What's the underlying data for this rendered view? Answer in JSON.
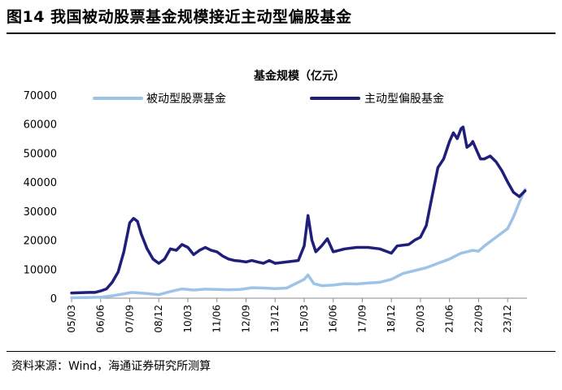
{
  "figure": {
    "title": "图14 我国被动股票基金规模接近主动型偏股基金",
    "source": "资料来源：Wind，海通证券研究所测算"
  },
  "chart_data": {
    "type": "line",
    "title": "基金规模（亿元）",
    "xlabel": "",
    "ylabel": "",
    "ylim": [
      0,
      70000
    ],
    "yticks": [
      0,
      10000,
      20000,
      30000,
      40000,
      50000,
      60000,
      70000
    ],
    "xlim": [
      2005.167,
      2024.75
    ],
    "xticks": [
      "05/03",
      "06/06",
      "07/09",
      "08/12",
      "10/03",
      "11/06",
      "12/09",
      "13/12",
      "15/03",
      "16/06",
      "17/09",
      "18/12",
      "20/03",
      "21/06",
      "22/09",
      "23/12"
    ],
    "grid": false,
    "legend": "top",
    "colors": {
      "passive": "#9DC3E6",
      "active": "#1F1F7A"
    },
    "series": [
      {
        "name": "被动型股票基金",
        "color": "#9DC3E6",
        "points": [
          [
            "2005-03",
            150
          ],
          [
            "2005-12",
            250
          ],
          [
            "2006-06",
            350
          ],
          [
            "2006-12",
            800
          ],
          [
            "2007-06",
            1500
          ],
          [
            "2007-10",
            2000
          ],
          [
            "2008-06",
            1600
          ],
          [
            "2008-12",
            1200
          ],
          [
            "2009-06",
            2300
          ],
          [
            "2009-12",
            3200
          ],
          [
            "2010-06",
            2800
          ],
          [
            "2010-12",
            3100
          ],
          [
            "2011-06",
            3000
          ],
          [
            "2011-12",
            2900
          ],
          [
            "2012-06",
            3000
          ],
          [
            "2012-12",
            3600
          ],
          [
            "2013-06",
            3500
          ],
          [
            "2013-12",
            3300
          ],
          [
            "2014-06",
            3500
          ],
          [
            "2014-12",
            5500
          ],
          [
            "2015-03",
            6500
          ],
          [
            "2015-05",
            8000
          ],
          [
            "2015-08",
            5000
          ],
          [
            "2015-12",
            4300
          ],
          [
            "2016-06",
            4500
          ],
          [
            "2016-12",
            5000
          ],
          [
            "2017-06",
            4900
          ],
          [
            "2017-12",
            5200
          ],
          [
            "2018-06",
            5500
          ],
          [
            "2018-12",
            6500
          ],
          [
            "2019-06",
            8500
          ],
          [
            "2019-12",
            9500
          ],
          [
            "2020-06",
            10500
          ],
          [
            "2020-12",
            12000
          ],
          [
            "2021-06",
            13500
          ],
          [
            "2021-12",
            15500
          ],
          [
            "2022-03",
            16000
          ],
          [
            "2022-06",
            16500
          ],
          [
            "2022-09",
            16200
          ],
          [
            "2022-12",
            18000
          ],
          [
            "2023-06",
            21000
          ],
          [
            "2023-12",
            24000
          ],
          [
            "2024-03",
            28000
          ],
          [
            "2024-06",
            33000
          ],
          [
            "2024-09",
            37500
          ]
        ]
      },
      {
        "name": "主动型偏股基金",
        "color": "#1F1F7A",
        "points": [
          [
            "2005-03",
            1800
          ],
          [
            "2005-12",
            2000
          ],
          [
            "2006-03",
            2000
          ],
          [
            "2006-06",
            2500
          ],
          [
            "2006-09",
            3200
          ],
          [
            "2006-12",
            5500
          ],
          [
            "2007-03",
            9000
          ],
          [
            "2007-06",
            16000
          ],
          [
            "2007-09",
            26000
          ],
          [
            "2007-11",
            27500
          ],
          [
            "2008-01",
            26500
          ],
          [
            "2008-03",
            22000
          ],
          [
            "2008-06",
            17000
          ],
          [
            "2008-09",
            13500
          ],
          [
            "2008-12",
            12000
          ],
          [
            "2009-03",
            13500
          ],
          [
            "2009-06",
            17000
          ],
          [
            "2009-09",
            16500
          ],
          [
            "2009-12",
            18500
          ],
          [
            "2010-03",
            17500
          ],
          [
            "2010-06",
            15000
          ],
          [
            "2010-09",
            16500
          ],
          [
            "2010-12",
            17500
          ],
          [
            "2011-03",
            16500
          ],
          [
            "2011-06",
            16000
          ],
          [
            "2011-09",
            14500
          ],
          [
            "2011-12",
            13500
          ],
          [
            "2012-03",
            13000
          ],
          [
            "2012-06",
            12800
          ],
          [
            "2012-09",
            12500
          ],
          [
            "2012-12",
            13000
          ],
          [
            "2013-03",
            12500
          ],
          [
            "2013-06",
            12000
          ],
          [
            "2013-09",
            13000
          ],
          [
            "2013-12",
            12000
          ],
          [
            "2014-06",
            12500
          ],
          [
            "2014-12",
            13000
          ],
          [
            "2015-03",
            18000
          ],
          [
            "2015-05",
            28500
          ],
          [
            "2015-07",
            20000
          ],
          [
            "2015-09",
            16000
          ],
          [
            "2015-12",
            18000
          ],
          [
            "2016-03",
            20500
          ],
          [
            "2016-06",
            16000
          ],
          [
            "2016-12",
            17000
          ],
          [
            "2017-06",
            17500
          ],
          [
            "2017-12",
            17500
          ],
          [
            "2018-06",
            17000
          ],
          [
            "2018-12",
            15500
          ],
          [
            "2019-03",
            18000
          ],
          [
            "2019-09",
            18500
          ],
          [
            "2019-12",
            20000
          ],
          [
            "2020-03",
            21000
          ],
          [
            "2020-06",
            25000
          ],
          [
            "2020-09",
            35000
          ],
          [
            "2020-12",
            45000
          ],
          [
            "2021-03",
            48000
          ],
          [
            "2021-06",
            54000
          ],
          [
            "2021-08",
            57000
          ],
          [
            "2021-10",
            55000
          ],
          [
            "2021-12",
            58500
          ],
          [
            "2022-01",
            59000
          ],
          [
            "2022-03",
            52000
          ],
          [
            "2022-05",
            53000
          ],
          [
            "2022-06",
            54000
          ],
          [
            "2022-08",
            51000
          ],
          [
            "2022-10",
            48000
          ],
          [
            "2022-12",
            48000
          ],
          [
            "2023-03",
            49000
          ],
          [
            "2023-06",
            47000
          ],
          [
            "2023-09",
            44000
          ],
          [
            "2023-12",
            40000
          ],
          [
            "2024-03",
            36500
          ],
          [
            "2024-06",
            35000
          ],
          [
            "2024-09",
            37000
          ]
        ]
      }
    ]
  }
}
